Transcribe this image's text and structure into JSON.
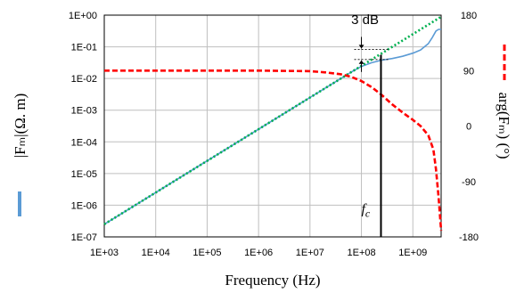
{
  "chart_data": {
    "type": "line",
    "xlabel": "Frequency (H₂)",
    "xlabel_display": "Frequency (Hz)",
    "ylabel_left": "|Fₘ|(Ω. m)",
    "ylabel_right": "arg(Fₘ) (°)",
    "x_scale": "log",
    "xlim_exp": [
      3,
      9.55
    ],
    "y_left_scale": "log",
    "ylim_left_exp": [
      -7,
      0
    ],
    "ylim_right": [
      -180,
      180
    ],
    "grid": true,
    "x_ticks": [
      "1E+03",
      "1E+04",
      "1E+05",
      "1E+06",
      "1E+07",
      "1E+08",
      "1E+09"
    ],
    "y_left_ticks": [
      "1E+00",
      "1E-01",
      "1E-02",
      "1E-03",
      "1E-04",
      "1E-05",
      "1E-06",
      "1E-07"
    ],
    "y_right_ticks": [
      "180",
      "90",
      "0",
      "-90",
      "-180"
    ],
    "annotations": {
      "three_db": "3 dB",
      "fc_symbol": "f",
      "fc_subscript": "c"
    },
    "fc_exp": 8.38,
    "series": [
      {
        "axis": "left",
        "color": "#5b9bd5",
        "style": "solid",
        "x_exp": [
          3,
          4,
          5,
          6,
          7,
          7.8,
          8.0,
          8.2,
          8.4,
          8.6,
          8.8,
          9.0,
          9.15,
          9.3,
          9.38,
          9.45,
          9.5,
          9.55
        ],
        "y_exp": [
          -6.6,
          -5.6,
          -4.6,
          -3.6,
          -2.6,
          -1.8,
          -1.62,
          -1.5,
          -1.42,
          -1.37,
          -1.3,
          -1.2,
          -1.1,
          -0.9,
          -0.7,
          -0.5,
          -0.45,
          -0.45
        ]
      },
      {
        "axis": "left",
        "color": "#00b050",
        "style": "dotted",
        "x_exp": [
          3,
          9.55
        ],
        "y_exp": [
          -6.6,
          -0.05
        ]
      },
      {
        "axis": "right",
        "color": "#ff0000",
        "style": "dashed",
        "x_exp": [
          3,
          4,
          5,
          6,
          7,
          7.3,
          7.6,
          7.8,
          8.0,
          8.2,
          8.4,
          8.6,
          8.8,
          9.0,
          9.15,
          9.3,
          9.4,
          9.45,
          9.5,
          9.55
        ],
        "y_deg": [
          90,
          90,
          90,
          90,
          89,
          87,
          84,
          80,
          73,
          63,
          50,
          35,
          22,
          10,
          0,
          -15,
          -38,
          -70,
          -115,
          -170
        ]
      }
    ]
  }
}
